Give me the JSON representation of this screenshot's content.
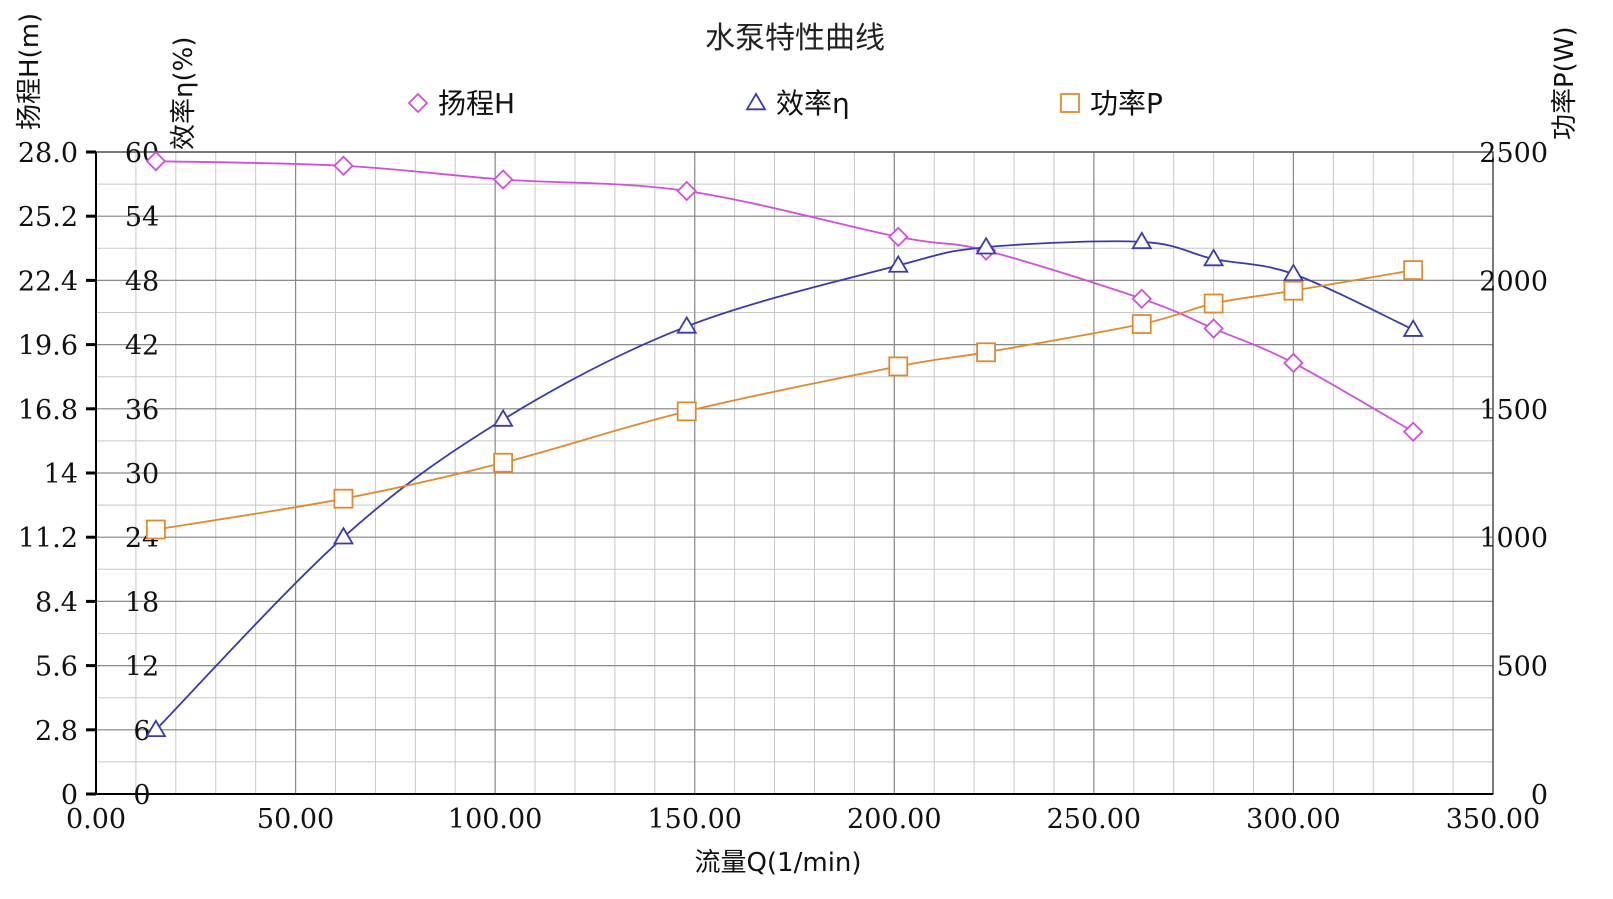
{
  "chart_data": {
    "type": "line",
    "title": "水泵特性曲线",
    "xlabel": "流量Q(1/min)",
    "xlim": [
      0,
      350
    ],
    "x_ticks": [
      "0.00",
      "50.00",
      "100.00",
      "150.00",
      "200.00",
      "250.00",
      "300.00",
      "350.00"
    ],
    "y_axes": {
      "head": {
        "label": "扬程H(m)",
        "ylim": [
          0,
          28
        ],
        "ticks": [
          "0",
          "2.8",
          "5.6",
          "8.4",
          "11.2",
          "14",
          "16.8",
          "19.6",
          "22.4",
          "25.2",
          "28.0"
        ]
      },
      "efficiency": {
        "label": "效率η(%)",
        "ylim": [
          0,
          60
        ],
        "ticks": [
          "0",
          "6",
          "12",
          "18",
          "24",
          "30",
          "36",
          "42",
          "48",
          "54",
          "60"
        ]
      },
      "power": {
        "label": "功率P(W)",
        "ylim": [
          0,
          2500
        ],
        "ticks": [
          "0",
          "500",
          "1000",
          "1500",
          "2000",
          "2500"
        ]
      }
    },
    "grid": true,
    "legend_position": "top",
    "series": [
      {
        "name": "扬程H",
        "axis": "head",
        "marker": "diamond",
        "color": "#d050d8",
        "x": [
          15,
          62,
          102,
          148,
          201,
          223,
          262,
          280,
          300,
          330
        ],
        "values": [
          27.6,
          27.4,
          26.8,
          26.3,
          24.3,
          23.7,
          21.6,
          20.3,
          18.8,
          15.8
        ]
      },
      {
        "name": "效率η",
        "axis": "efficiency",
        "marker": "triangle",
        "color": "#3a3ab0",
        "x": [
          15,
          62,
          102,
          148,
          201,
          223,
          262,
          280,
          300,
          330
        ],
        "values": [
          6,
          24,
          35,
          43.7,
          49.4,
          51.1,
          51.6,
          50,
          48.6,
          43.4
        ]
      },
      {
        "name": "功率P",
        "axis": "power",
        "marker": "square",
        "color": "#e08a30",
        "x": [
          15,
          62,
          102,
          148,
          201,
          223,
          262,
          280,
          300,
          330
        ],
        "values": [
          1030,
          1150,
          1290,
          1490,
          1665,
          1720,
          1830,
          1910,
          1960,
          2040
        ]
      }
    ]
  }
}
